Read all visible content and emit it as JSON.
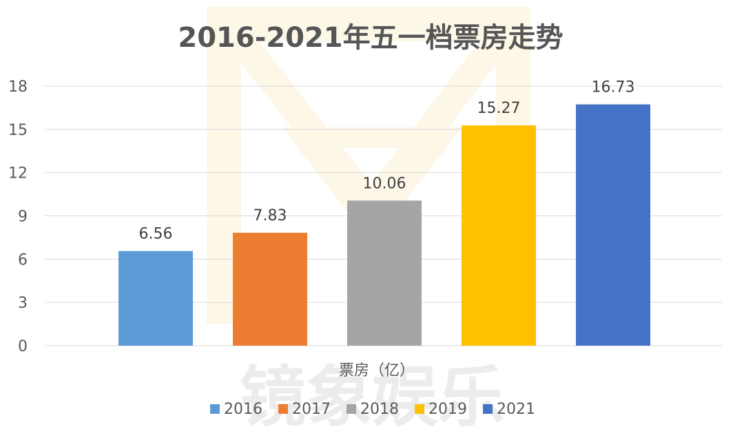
{
  "watermark_text": "镜象娱乐",
  "chart_data": {
    "type": "bar",
    "title": "2016-2021年五一档票房走势",
    "xlabel": "票房（亿）",
    "ylabel": "",
    "ylim": [
      0,
      18
    ],
    "yticks": [
      0,
      3,
      6,
      9,
      12,
      15,
      18
    ],
    "grid": true,
    "legend_position": "bottom",
    "series": [
      {
        "name": "2016",
        "value": 6.56,
        "label": "6.56",
        "color": "#5B9BD5"
      },
      {
        "name": "2017",
        "value": 7.83,
        "label": "7.83",
        "color": "#ED7D31"
      },
      {
        "name": "2018",
        "value": 10.06,
        "label": "10.06",
        "color": "#A5A5A5"
      },
      {
        "name": "2019",
        "value": 15.27,
        "label": "15.27",
        "color": "#FFC000"
      },
      {
        "name": "2021",
        "value": 16.73,
        "label": "16.73",
        "color": "#4472C4"
      }
    ]
  }
}
